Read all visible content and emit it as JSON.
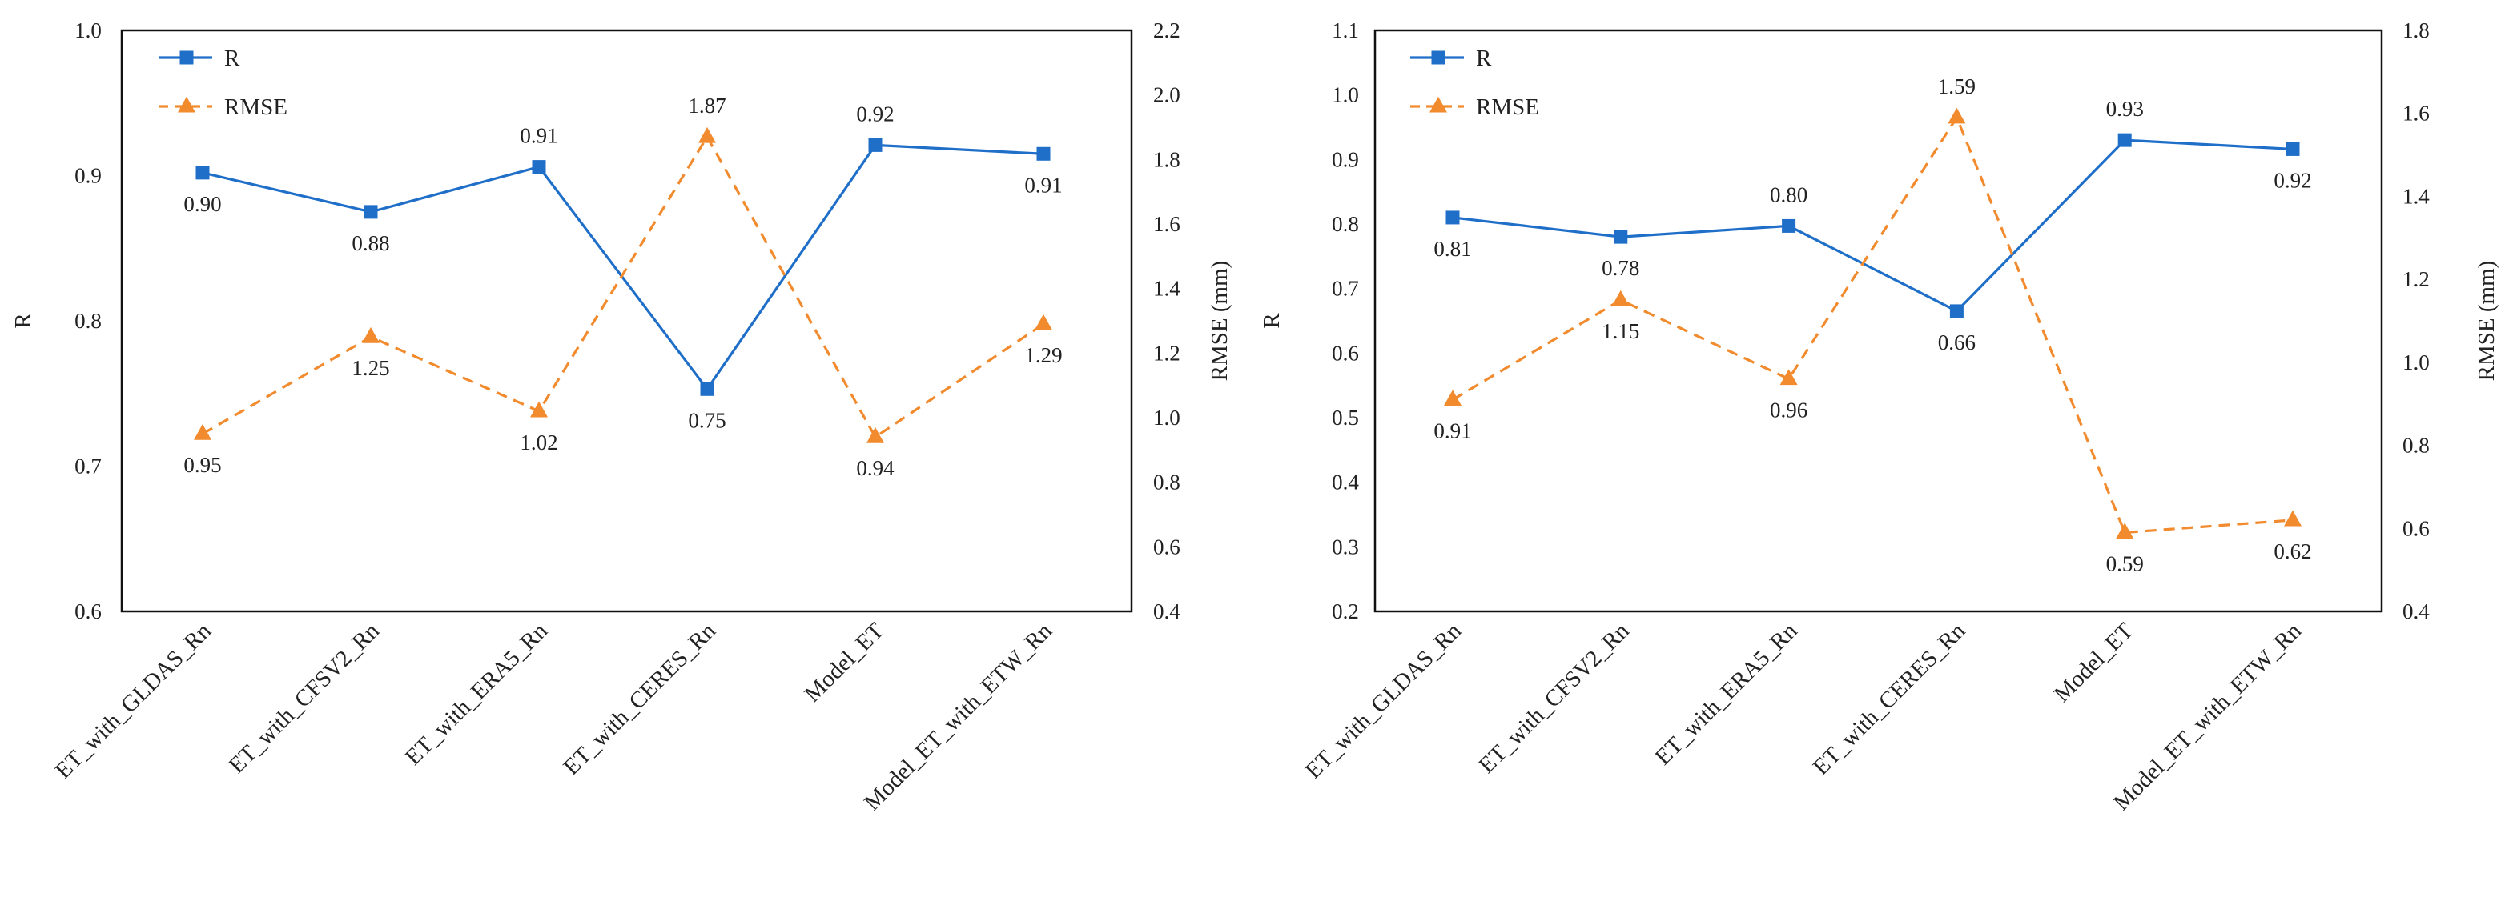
{
  "colors": {
    "r": "#1f6fc9",
    "rmse": "#f28a2e",
    "axis": "#222222",
    "frame": "#111111"
  },
  "chart_data": [
    {
      "type": "line",
      "categories": [
        "ET_with_GLDAS_Rn",
        "ET_with_CFSV2_Rn",
        "ET_with_ERA5_Rn",
        "ET_with_CERES_Rn",
        "Model_ET",
        "Model_ET_with_ETW_Rn"
      ],
      "series": [
        {
          "name": "R",
          "axis": "left",
          "marker": "square",
          "line": "solid",
          "values": [
            0.902,
            0.875,
            0.906,
            0.753,
            0.921,
            0.915
          ],
          "labels": [
            "0.90",
            "0.88",
            "0.91",
            "0.75",
            "0.92",
            "0.91"
          ],
          "label_pos": [
            "below",
            "below",
            "above",
            "below",
            "above",
            "below"
          ]
        },
        {
          "name": "RMSE",
          "axis": "right",
          "marker": "triangle",
          "line": "dashed",
          "values": [
            0.95,
            1.25,
            1.02,
            1.87,
            0.94,
            1.29
          ],
          "labels": [
            "0.95",
            "1.25",
            "1.02",
            "1.87",
            "0.94",
            "1.29"
          ],
          "label_pos": [
            "below",
            "below",
            "below",
            "above",
            "below",
            "below"
          ]
        }
      ],
      "y_left": {
        "label": "R",
        "min": 0.6,
        "max": 1.0,
        "step": 0.1,
        "ticks": [
          "0.6",
          "0.7",
          "0.8",
          "0.9",
          "1.0"
        ]
      },
      "y_right": {
        "label": "RMSE (mm)",
        "min": 0.4,
        "max": 2.2,
        "step": 0.2,
        "ticks": [
          "0.4",
          "0.6",
          "0.8",
          "1.0",
          "1.2",
          "1.4",
          "1.6",
          "1.8",
          "2.0",
          "2.2"
        ]
      },
      "legend_position": "top-left",
      "grid": false
    },
    {
      "type": "line",
      "categories": [
        "ET_with_GLDAS_Rn",
        "ET_with_CFSV2_Rn",
        "ET_with_ERA5_Rn",
        "ET_with_CERES_Rn",
        "Model_ET",
        "Model_ET_with_ETW_Rn"
      ],
      "series": [
        {
          "name": "R",
          "axis": "left",
          "marker": "square",
          "line": "solid",
          "values": [
            0.81,
            0.78,
            0.797,
            0.665,
            0.93,
            0.916
          ],
          "labels": [
            "0.81",
            "0.78",
            "0.80",
            "0.66",
            "0.93",
            "0.92"
          ],
          "label_pos": [
            "below",
            "below",
            "above",
            "below",
            "above",
            "below"
          ]
        },
        {
          "name": "RMSE",
          "axis": "right",
          "marker": "triangle",
          "line": "dashed",
          "values": [
            0.91,
            1.15,
            0.96,
            1.59,
            0.59,
            0.62
          ],
          "labels": [
            "0.91",
            "1.15",
            "0.96",
            "1.59",
            "0.59",
            "0.62"
          ],
          "label_pos": [
            "below",
            "below",
            "below",
            "above",
            "below",
            "below"
          ]
        }
      ],
      "y_left": {
        "label": "R",
        "min": 0.2,
        "max": 1.1,
        "step": 0.1,
        "ticks": [
          "0.2",
          "0.3",
          "0.4",
          "0.5",
          "0.6",
          "0.7",
          "0.8",
          "0.9",
          "1.0",
          "1.1"
        ]
      },
      "y_right": {
        "label": "RMSE (mm)",
        "min": 0.4,
        "max": 1.8,
        "step": 0.2,
        "ticks": [
          "0.4",
          "0.6",
          "0.8",
          "1.0",
          "1.2",
          "1.4",
          "1.6",
          "1.8"
        ]
      },
      "legend_position": "top-left",
      "grid": false
    }
  ]
}
